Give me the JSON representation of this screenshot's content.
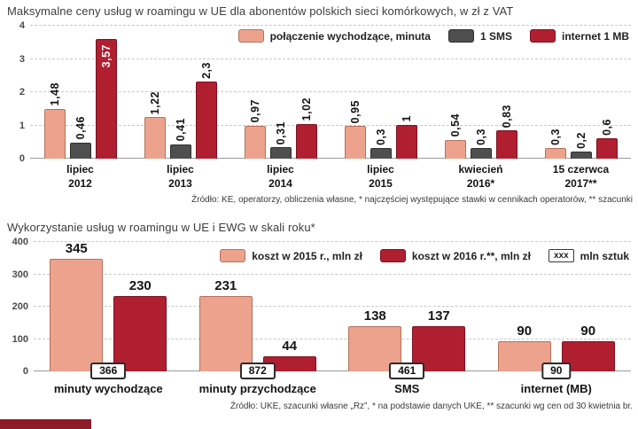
{
  "colors": {
    "salmon": "#ECA28D",
    "salmon_border": "#B4725C",
    "gray": "#4F4F4F",
    "gray_border": "#2E2E2E",
    "red": "#B01F30",
    "red_border": "#7C1020",
    "grid": "#C9C9C9",
    "axis": "#9A9A9A",
    "strip": "#8E1B28"
  },
  "chart_data": [
    {
      "type": "bar",
      "title": "Maksymalne ceny usług w roamingu w UE dla abonentów polskich sieci komórkowych, w zł z VAT",
      "ylim": [
        0,
        4
      ],
      "yticks": [
        0,
        1,
        2,
        3,
        4
      ],
      "grid": true,
      "legend_position": "top-right",
      "categories": [
        [
          "lipiec",
          "2012"
        ],
        [
          "lipiec",
          "2013"
        ],
        [
          "lipiec",
          "2014"
        ],
        [
          "lipiec",
          "2015"
        ],
        [
          "kwiecień",
          "2016*"
        ],
        [
          "15 czerwca",
          "2017**"
        ]
      ],
      "series": [
        {
          "name": "połączenie wychodzące, minuta",
          "color_key": "salmon",
          "values": [
            1.48,
            1.22,
            0.97,
            0.95,
            0.54,
            0.3
          ],
          "labels": [
            "1,48",
            "1,22",
            "0,97",
            "0,95",
            "0,54",
            "0,3"
          ]
        },
        {
          "name": "1 SMS",
          "color_key": "gray",
          "values": [
            0.46,
            0.41,
            0.31,
            0.3,
            0.3,
            0.2
          ],
          "labels": [
            "0,46",
            "0,41",
            "0,31",
            "0,3",
            "0,3",
            "0,2"
          ]
        },
        {
          "name": "internet 1 MB",
          "color_key": "red",
          "values": [
            3.57,
            2.3,
            1.02,
            1,
            0.83,
            0.6
          ],
          "labels": [
            "3,57",
            "2,3",
            "1,02",
            "1",
            "0,83",
            "0,6"
          ]
        }
      ],
      "source": "Źródło: KE, operatorzy, obliczenia własne, * najczęściej występujące stawki w cennikach operatorów, ** szacunki"
    },
    {
      "type": "bar",
      "title": "Wykorzystanie usług w roamingu w UE i EWG w skali roku*",
      "ylim": [
        0,
        400
      ],
      "yticks": [
        0,
        100,
        200,
        300,
        400
      ],
      "grid": true,
      "legend_position": "top-right",
      "categories": [
        [
          "minuty wychodzące"
        ],
        [
          "minuty przychodzące"
        ],
        [
          "SMS"
        ],
        [
          "internet (MB)"
        ]
      ],
      "series": [
        {
          "name": "koszt w 2015 r., mln zł",
          "color_key": "salmon",
          "values": [
            345,
            231,
            138,
            90
          ],
          "labels": [
            "345",
            "231",
            "138",
            "90"
          ]
        },
        {
          "name": "koszt w 2016 r.**, mln zł",
          "color_key": "red",
          "values": [
            230,
            44,
            137,
            90
          ],
          "labels": [
            "230",
            "44",
            "137",
            "90"
          ]
        }
      ],
      "legend_extra": {
        "box_label": "xxx",
        "label": "mln sztuk"
      },
      "unit_boxes": [
        "366",
        "872",
        "461",
        "90"
      ],
      "source": "Źródło: UKE, szacunki własne „Rz”, * na podstawie danych UKE, ** szacunki wg cen od 30 kwietnia br."
    }
  ]
}
